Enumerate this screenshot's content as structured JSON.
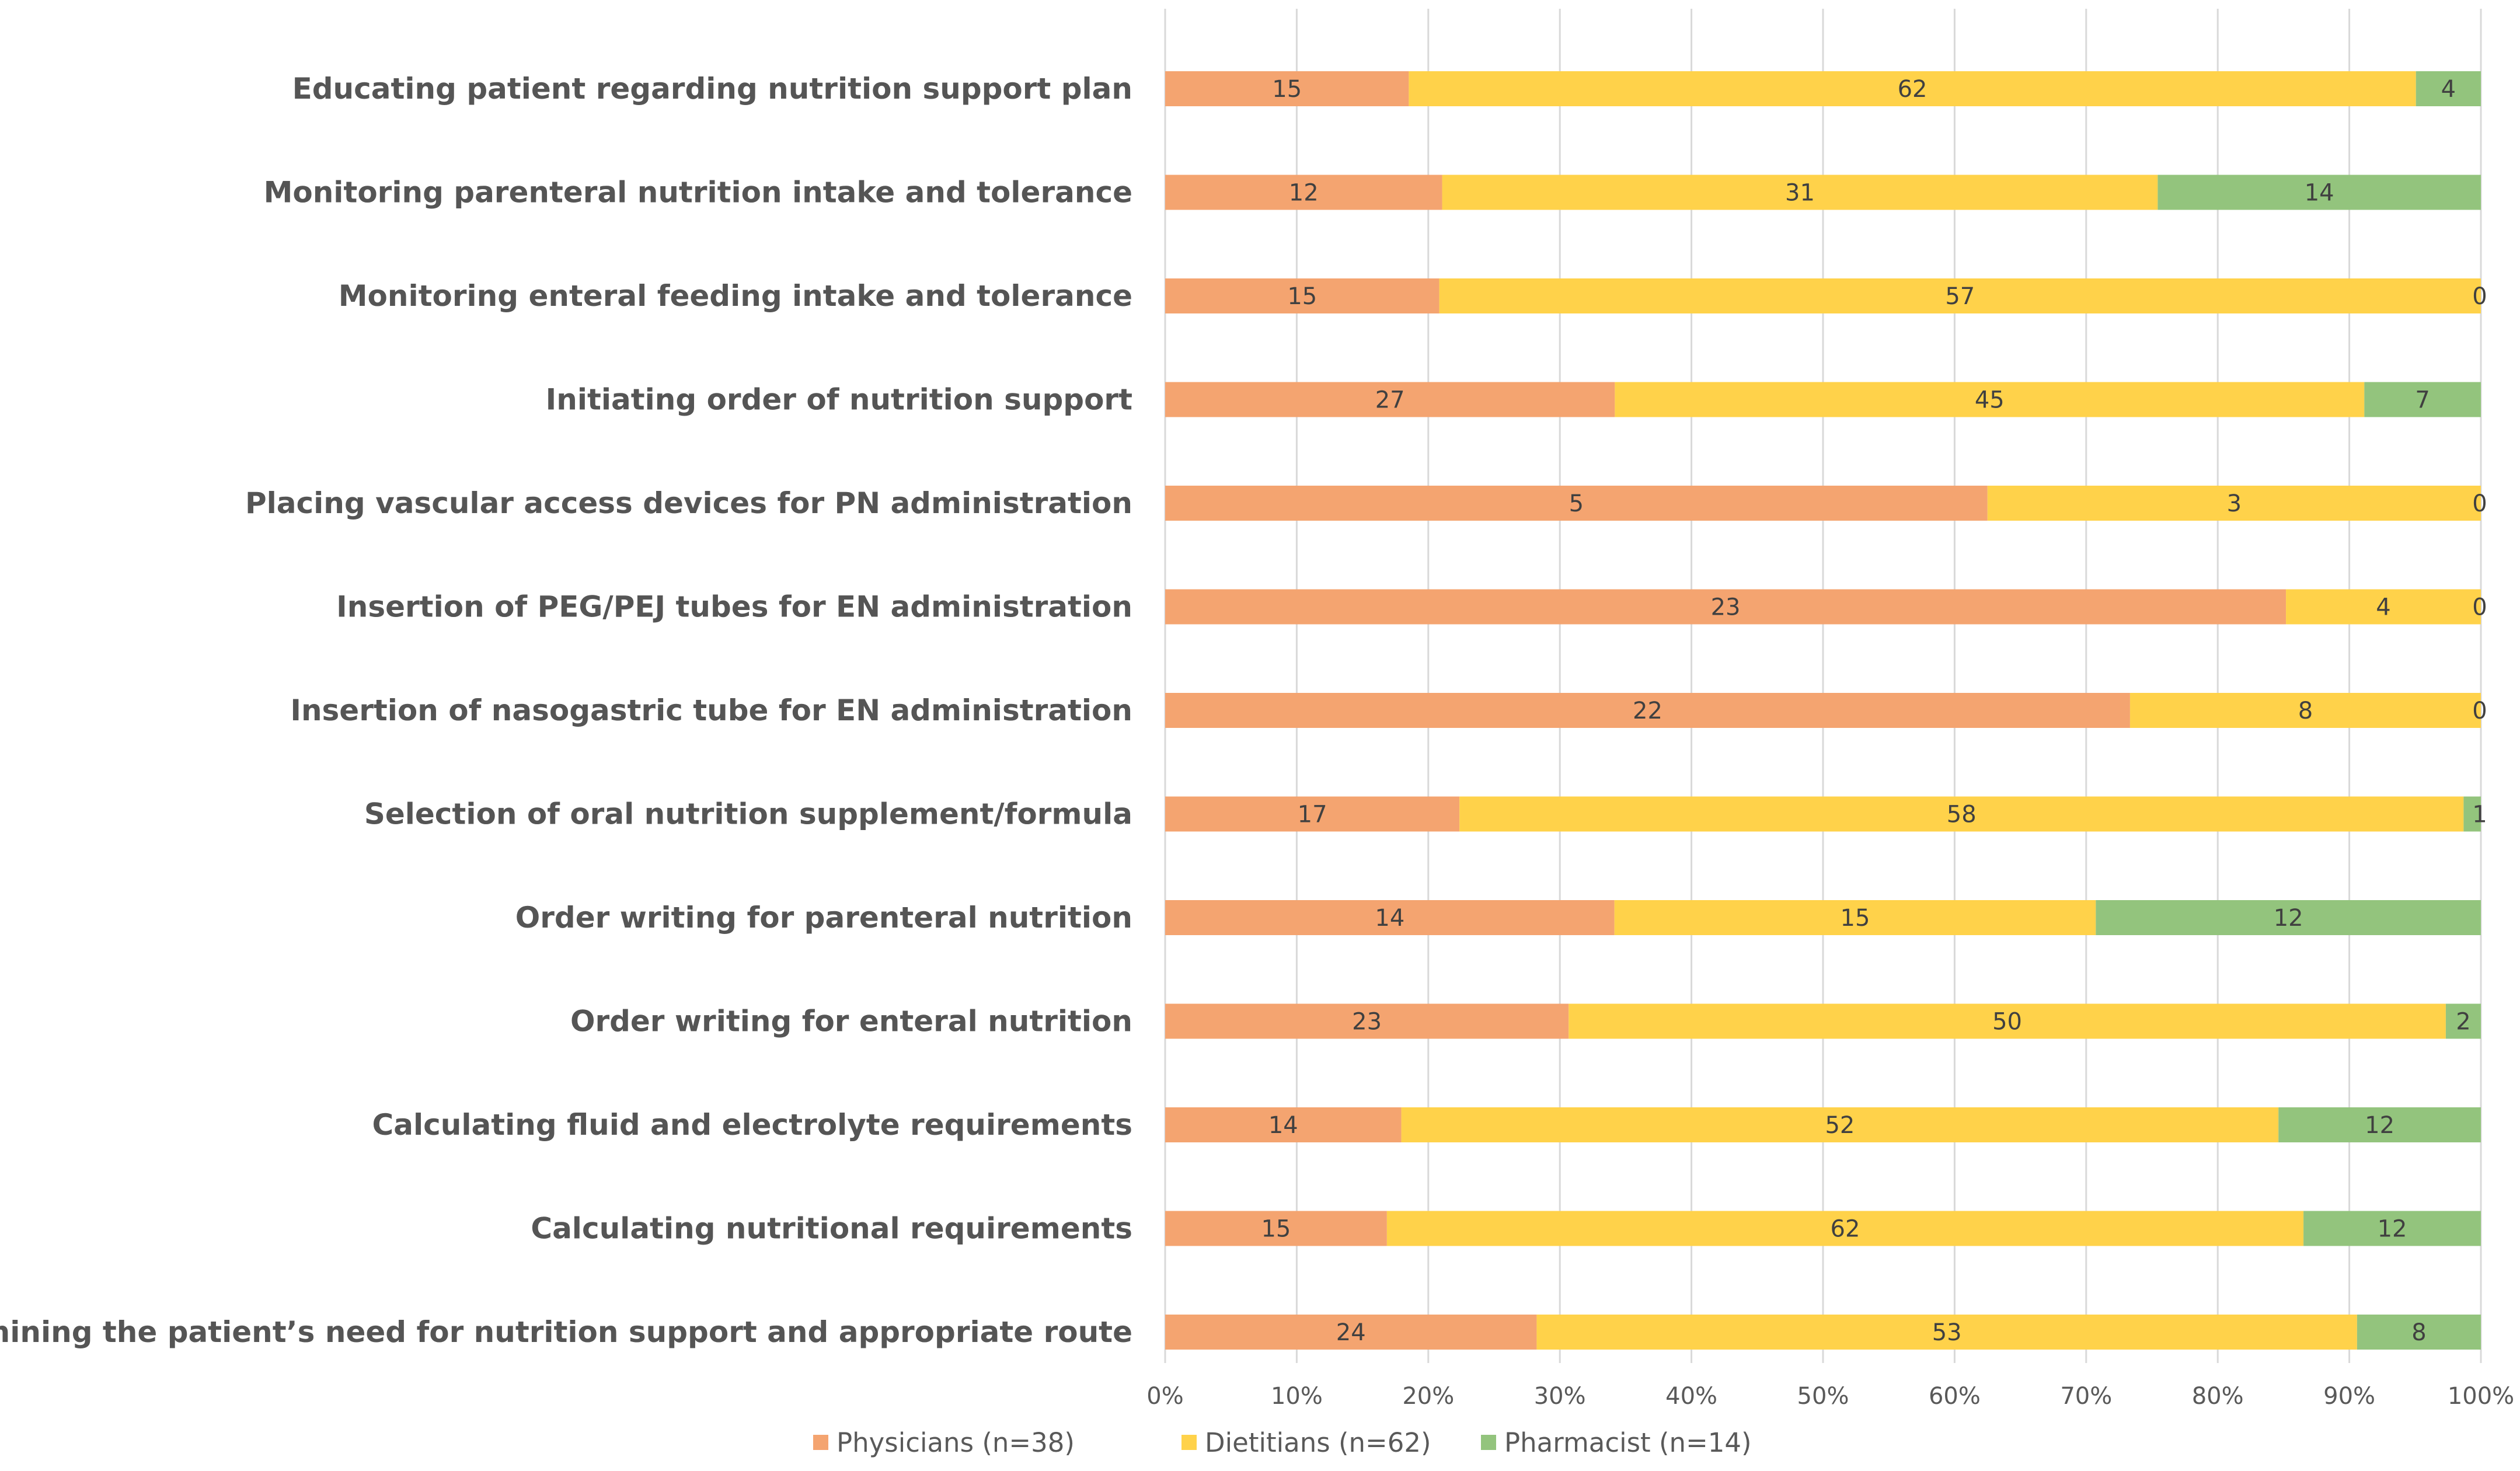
{
  "chart_data": {
    "type": "bar",
    "orientation": "horizontal",
    "stacking": "percent",
    "title": "",
    "xlabel": "",
    "ylabel": "",
    "xlim": [
      0,
      100
    ],
    "grid": true,
    "legend_position": "bottom",
    "tick_labels": [
      "0%",
      "10%",
      "20%",
      "30%",
      "40%",
      "50%",
      "60%",
      "70%",
      "80%",
      "90%",
      "100%"
    ],
    "categories": [
      "Educating patient regarding nutrition support plan",
      "Monitoring parenteral nutrition intake and tolerance",
      "Monitoring enteral feeding intake and tolerance",
      "Initiating order of nutrition support",
      "Placing vascular access devices for PN administration",
      "Insertion of PEG/PEJ tubes for EN administration",
      "Insertion of nasogastric tube for EN administration",
      "Selection of oral nutrition supplement/formula",
      "Order writing for parenteral nutrition",
      "Order writing for enteral nutrition",
      "Calculating fluid and electrolyte requirements",
      "Calculating nutritional requirements",
      "Determining the patient’s need for nutrition support and appropriate route"
    ],
    "series": [
      {
        "name": "Physicians (n=38)",
        "color": "#F4A470",
        "values": [
          15,
          12,
          15,
          27,
          5,
          23,
          22,
          17,
          14,
          23,
          14,
          15,
          24
        ]
      },
      {
        "name": "Dietitians (n=62)",
        "color": "#FFD24A",
        "values": [
          62,
          31,
          57,
          45,
          3,
          4,
          8,
          58,
          15,
          50,
          52,
          62,
          53
        ]
      },
      {
        "name": "Pharmacist (n=14)",
        "color": "#93C47D",
        "values": [
          4,
          14,
          0,
          7,
          0,
          0,
          0,
          1,
          12,
          2,
          12,
          12,
          8
        ]
      }
    ]
  }
}
